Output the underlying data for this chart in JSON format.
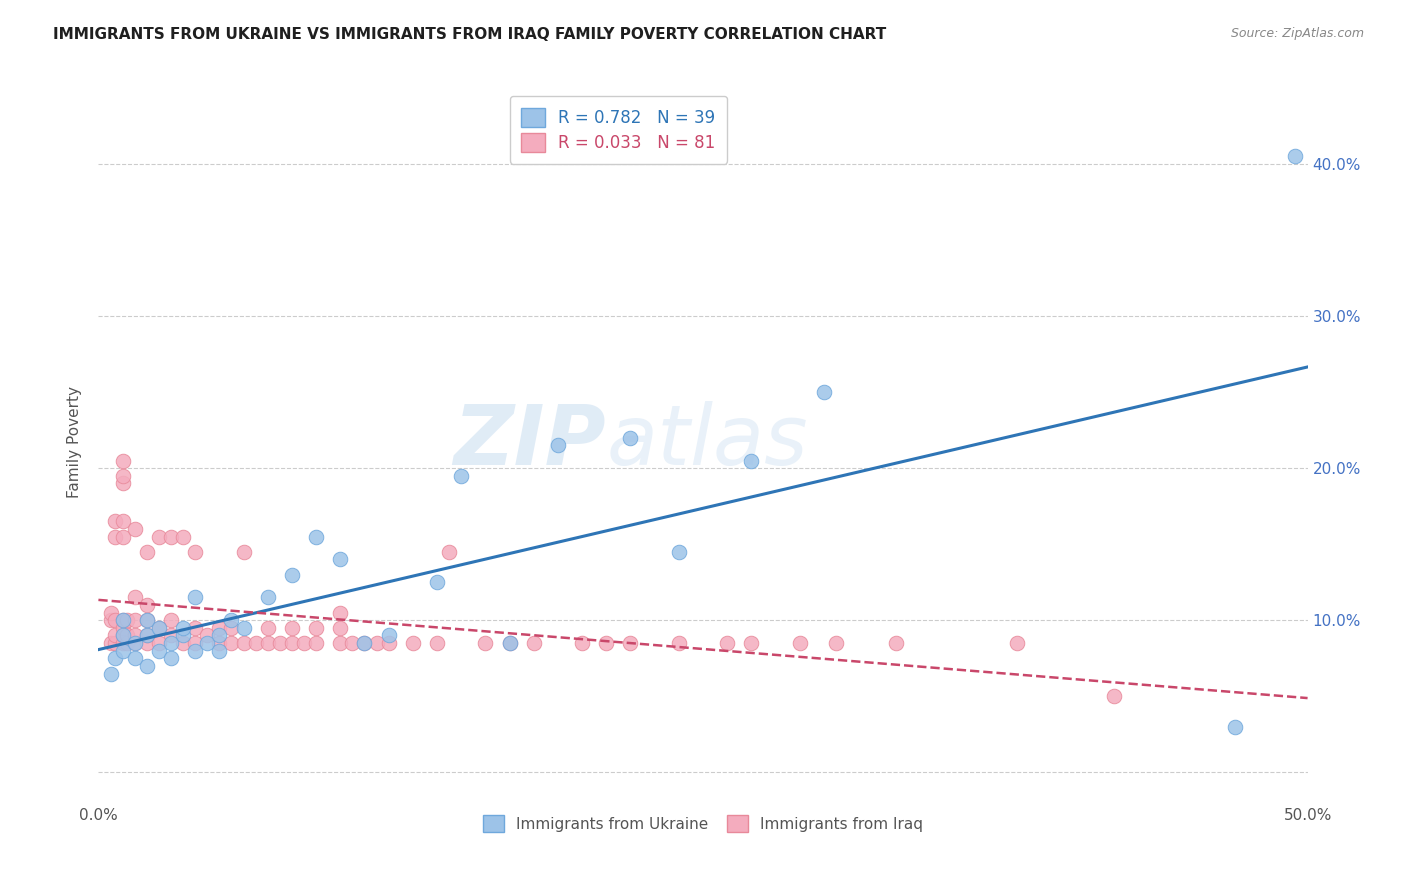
{
  "title": "IMMIGRANTS FROM UKRAINE VS IMMIGRANTS FROM IRAQ FAMILY POVERTY CORRELATION CHART",
  "source": "Source: ZipAtlas.com",
  "ylabel": "Family Poverty",
  "xlim": [
    0.0,
    0.5
  ],
  "ylim": [
    -0.02,
    0.455
  ],
  "xtick_positions": [
    0.0,
    0.1,
    0.2,
    0.3,
    0.4,
    0.5
  ],
  "ytick_positions": [
    0.0,
    0.1,
    0.2,
    0.3,
    0.4
  ],
  "xtick_labels": [
    "0.0%",
    "",
    "",
    "",
    "",
    "50.0%"
  ],
  "ytick_labels_right": [
    "",
    "10.0%",
    "20.0%",
    "30.0%",
    "40.0%"
  ],
  "ukraine_color": "#9DC3E8",
  "iraq_color": "#F4ACBE",
  "ukraine_edge": "#6FA8DC",
  "iraq_edge": "#E8899A",
  "line_ukraine_color": "#2E75B6",
  "line_iraq_color": "#C9476A",
  "ukraine_R": 0.782,
  "ukraine_N": 39,
  "iraq_R": 0.033,
  "iraq_N": 81,
  "legend_label_ukraine": "Immigrants from Ukraine",
  "legend_label_iraq": "Immigrants from Iraq",
  "watermark_zip": "ZIP",
  "watermark_atlas": "atlas",
  "grid_color": "#CCCCCC",
  "ukraine_x": [
    0.005,
    0.007,
    0.01,
    0.01,
    0.01,
    0.015,
    0.015,
    0.02,
    0.02,
    0.02,
    0.025,
    0.025,
    0.03,
    0.03,
    0.035,
    0.035,
    0.04,
    0.04,
    0.045,
    0.05,
    0.05,
    0.055,
    0.06,
    0.07,
    0.08,
    0.09,
    0.1,
    0.11,
    0.12,
    0.14,
    0.15,
    0.17,
    0.19,
    0.22,
    0.24,
    0.27,
    0.3,
    0.47,
    0.495
  ],
  "ukraine_y": [
    0.065,
    0.075,
    0.08,
    0.09,
    0.1,
    0.075,
    0.085,
    0.07,
    0.09,
    0.1,
    0.08,
    0.095,
    0.075,
    0.085,
    0.09,
    0.095,
    0.08,
    0.115,
    0.085,
    0.08,
    0.09,
    0.1,
    0.095,
    0.115,
    0.13,
    0.155,
    0.14,
    0.085,
    0.09,
    0.125,
    0.195,
    0.085,
    0.215,
    0.22,
    0.145,
    0.205,
    0.25,
    0.03,
    0.405
  ],
  "iraq_x": [
    0.005,
    0.005,
    0.005,
    0.007,
    0.007,
    0.007,
    0.007,
    0.007,
    0.01,
    0.01,
    0.01,
    0.01,
    0.01,
    0.01,
    0.01,
    0.01,
    0.01,
    0.012,
    0.012,
    0.012,
    0.015,
    0.015,
    0.015,
    0.015,
    0.015,
    0.02,
    0.02,
    0.02,
    0.02,
    0.02,
    0.025,
    0.025,
    0.025,
    0.03,
    0.03,
    0.03,
    0.035,
    0.035,
    0.04,
    0.04,
    0.04,
    0.045,
    0.05,
    0.05,
    0.055,
    0.055,
    0.06,
    0.06,
    0.065,
    0.07,
    0.07,
    0.075,
    0.08,
    0.08,
    0.085,
    0.09,
    0.09,
    0.1,
    0.1,
    0.1,
    0.105,
    0.11,
    0.115,
    0.12,
    0.13,
    0.14,
    0.145,
    0.16,
    0.17,
    0.18,
    0.2,
    0.21,
    0.22,
    0.24,
    0.26,
    0.27,
    0.29,
    0.305,
    0.33,
    0.38,
    0.42
  ],
  "iraq_y": [
    0.085,
    0.1,
    0.105,
    0.085,
    0.09,
    0.1,
    0.155,
    0.165,
    0.085,
    0.09,
    0.095,
    0.1,
    0.155,
    0.165,
    0.19,
    0.195,
    0.205,
    0.085,
    0.09,
    0.1,
    0.085,
    0.09,
    0.1,
    0.115,
    0.16,
    0.085,
    0.09,
    0.1,
    0.11,
    0.145,
    0.085,
    0.095,
    0.155,
    0.09,
    0.1,
    0.155,
    0.085,
    0.155,
    0.085,
    0.095,
    0.145,
    0.09,
    0.085,
    0.095,
    0.085,
    0.095,
    0.085,
    0.145,
    0.085,
    0.085,
    0.095,
    0.085,
    0.085,
    0.095,
    0.085,
    0.085,
    0.095,
    0.085,
    0.095,
    0.105,
    0.085,
    0.085,
    0.085,
    0.085,
    0.085,
    0.085,
    0.145,
    0.085,
    0.085,
    0.085,
    0.085,
    0.085,
    0.085,
    0.085,
    0.085,
    0.085,
    0.085,
    0.085,
    0.085,
    0.085,
    0.05
  ]
}
